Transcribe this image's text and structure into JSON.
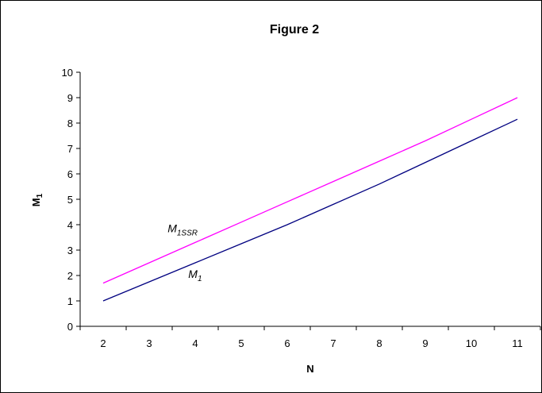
{
  "chart_data": {
    "type": "line",
    "title": "Figure 2",
    "xlabel": "N",
    "ylabel": {
      "main": "M",
      "subscript": "1"
    },
    "x": [
      2,
      3,
      4,
      5,
      6,
      7,
      8,
      9,
      10,
      11
    ],
    "x_tick_labels": [
      "2",
      "3",
      "4",
      "5",
      "6",
      "7",
      "8",
      "9",
      "10",
      "11"
    ],
    "y_ticks": [
      0,
      1,
      2,
      3,
      4,
      5,
      6,
      7,
      8,
      9,
      10
    ],
    "ylim": [
      0,
      10
    ],
    "grid": false,
    "series": [
      {
        "key": "m1ssr",
        "color": "#ff00ff",
        "values": [
          1.7,
          2.5,
          3.3,
          4.1,
          4.9,
          5.7,
          6.5,
          7.3,
          8.15,
          9.0
        ]
      },
      {
        "key": "m1",
        "color": "#000080",
        "values": [
          1.0,
          1.75,
          2.5,
          3.25,
          4.0,
          4.8,
          5.6,
          6.45,
          7.3,
          8.15
        ]
      }
    ],
    "annotations": [
      {
        "key": "m1ssr",
        "main": "M",
        "subscript": "1SSR",
        "at_x": 3.4,
        "at_y": 3.7
      },
      {
        "key": "m1",
        "main": "M",
        "subscript": "1",
        "at_x": 3.85,
        "at_y": 1.9
      }
    ]
  }
}
